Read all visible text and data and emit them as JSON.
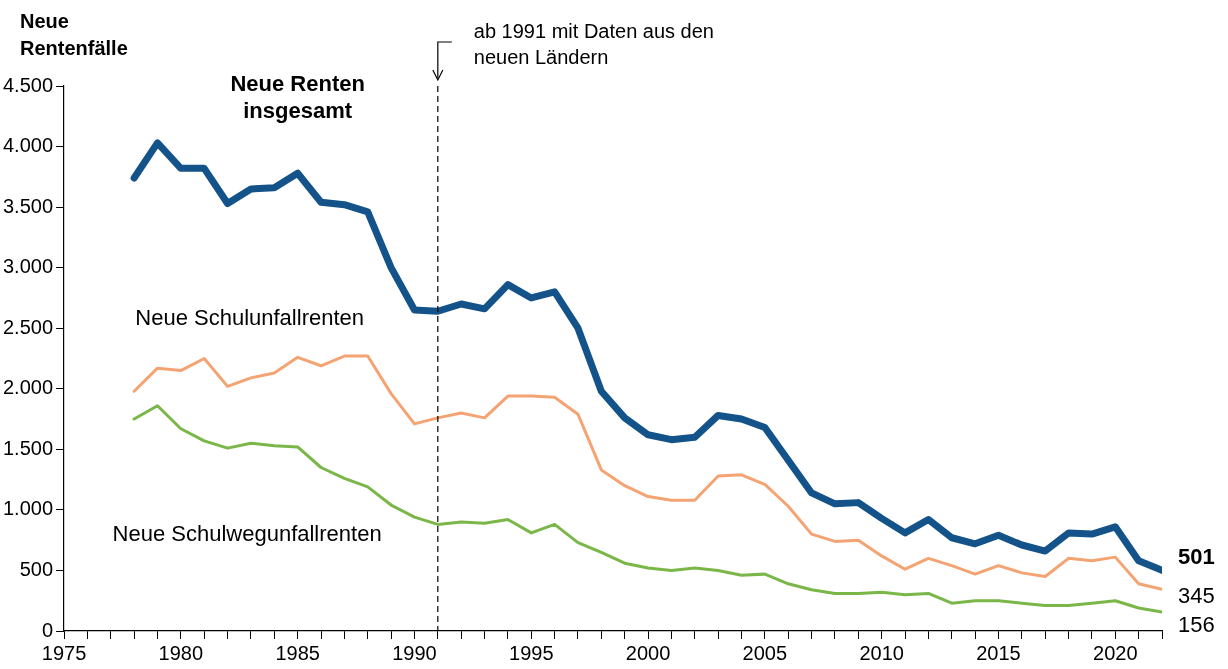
{
  "chart_data": {
    "type": "line",
    "ylabel": "Neue Rentenfälle",
    "x": [
      1978,
      1979,
      1980,
      1981,
      1982,
      1983,
      1984,
      1985,
      1986,
      1987,
      1988,
      1989,
      1990,
      1991,
      1992,
      1993,
      1994,
      1995,
      1996,
      1997,
      1998,
      1999,
      2000,
      2001,
      2002,
      2003,
      2004,
      2005,
      2006,
      2007,
      2008,
      2009,
      2010,
      2011,
      2012,
      2013,
      2014,
      2015,
      2016,
      2017,
      2018,
      2019,
      2020,
      2021,
      2022
    ],
    "series": [
      {
        "name": "Neue Renten insgesamt",
        "color": "#14538a",
        "values": [
          3740,
          4030,
          3820,
          3820,
          3530,
          3650,
          3660,
          3780,
          3540,
          3520,
          3460,
          3000,
          2650,
          2640,
          2700,
          2660,
          2860,
          2750,
          2800,
          2500,
          1980,
          1760,
          1620,
          1580,
          1600,
          1780,
          1750,
          1680,
          1410,
          1140,
          1050,
          1060,
          930,
          810,
          920,
          770,
          720,
          790,
          710,
          660,
          810,
          800,
          860,
          580,
          501
        ],
        "value_labels": [
          null,
          null,
          null,
          null,
          null,
          null,
          null,
          null,
          null,
          null,
          null,
          null,
          null,
          null,
          null,
          null,
          null,
          null,
          null,
          null,
          null,
          null,
          null,
          null,
          null,
          null,
          null,
          null,
          null,
          null,
          null,
          null,
          null,
          null,
          null,
          null,
          null,
          null,
          null,
          null,
          null,
          null,
          null,
          null,
          "501"
        ]
      },
      {
        "name": "Neue Schulunfallrenten",
        "color": "#f4a373",
        "values": [
          1980,
          2170,
          2150,
          2250,
          2020,
          2090,
          2130,
          2260,
          2190,
          2270,
          2270,
          1960,
          1710,
          1760,
          1800,
          1760,
          1940,
          1940,
          1930,
          1790,
          1330,
          1200,
          1110,
          1080,
          1080,
          1280,
          1290,
          1210,
          1030,
          800,
          740,
          750,
          620,
          510,
          600,
          540,
          470,
          540,
          480,
          450,
          600,
          580,
          610,
          390,
          345
        ],
        "value_labels": [
          null,
          null,
          null,
          null,
          null,
          null,
          null,
          null,
          null,
          null,
          null,
          null,
          null,
          null,
          null,
          null,
          null,
          null,
          null,
          null,
          null,
          null,
          null,
          null,
          null,
          null,
          null,
          null,
          null,
          null,
          null,
          null,
          null,
          null,
          null,
          null,
          null,
          null,
          null,
          null,
          null,
          null,
          null,
          null,
          "345"
        ]
      },
      {
        "name": "Neue Schulwegunfallrenten",
        "color": "#7ab648",
        "values": [
          1750,
          1860,
          1670,
          1570,
          1510,
          1550,
          1530,
          1520,
          1350,
          1260,
          1190,
          1040,
          940,
          880,
          900,
          890,
          920,
          810,
          880,
          730,
          650,
          560,
          520,
          500,
          520,
          500,
          460,
          470,
          390,
          340,
          310,
          310,
          320,
          300,
          310,
          230,
          250,
          250,
          230,
          210,
          210,
          230,
          250,
          190,
          156
        ],
        "value_labels": [
          null,
          null,
          null,
          null,
          null,
          null,
          null,
          null,
          null,
          null,
          null,
          null,
          null,
          null,
          null,
          null,
          null,
          null,
          null,
          null,
          null,
          null,
          null,
          null,
          null,
          null,
          null,
          null,
          null,
          null,
          null,
          null,
          null,
          null,
          null,
          null,
          null,
          null,
          null,
          null,
          null,
          null,
          null,
          null,
          "156"
        ]
      }
    ],
    "xlim": [
      1975,
      2022
    ],
    "xticks": [
      1975,
      {
        "value": 1976,
        "label": null
      },
      {
        "value": 1977,
        "label": null
      },
      {
        "value": 1978,
        "label": null
      },
      {
        "value": 1979,
        "label": null
      },
      1980,
      {
        "value": 1981,
        "label": null
      },
      {
        "value": 1982,
        "label": null
      },
      {
        "value": 1983,
        "label": null
      },
      {
        "value": 1984,
        "label": null
      },
      1985,
      {
        "value": 1986,
        "label": null
      },
      {
        "value": 1987,
        "label": null
      },
      {
        "value": 1988,
        "label": null
      },
      {
        "value": 1989,
        "label": null
      },
      1990,
      {
        "value": 1991,
        "label": null
      },
      {
        "value": 1992,
        "label": null
      },
      {
        "value": 1993,
        "label": null
      },
      {
        "value": 1994,
        "label": null
      },
      1995,
      {
        "value": 1996,
        "label": null
      },
      {
        "value": 1997,
        "label": null
      },
      {
        "value": 1998,
        "label": null
      },
      {
        "value": 1999,
        "label": null
      },
      2000,
      {
        "value": 2001,
        "label": null
      },
      {
        "value": 2002,
        "label": null
      },
      {
        "value": 2003,
        "label": null
      },
      {
        "value": 2004,
        "label": null
      },
      2005,
      {
        "value": 2006,
        "label": null
      },
      {
        "value": 2007,
        "label": null
      },
      {
        "value": 2008,
        "label": null
      },
      {
        "value": 2009,
        "label": null
      },
      2010,
      {
        "value": 2011,
        "label": null
      },
      {
        "value": 2012,
        "label": null
      },
      {
        "value": 2013,
        "label": null
      },
      {
        "value": 2014,
        "label": null
      },
      2015,
      {
        "value": 2016,
        "label": null
      },
      {
        "value": 2017,
        "label": null
      },
      {
        "value": 2018,
        "label": null
      },
      {
        "value": 2019,
        "label": null
      },
      2020,
      {
        "value": 2021,
        "label": null
      },
      {
        "value": 2022,
        "label": null
      }
    ],
    "ylim": [
      0,
      4500
    ],
    "yticks": [
      0,
      500,
      {
        "value": 1000,
        "label": "1.000"
      },
      {
        "value": 1500,
        "label": "1.500"
      },
      {
        "value": 2000,
        "label": "2.000"
      },
      {
        "value": 2500,
        "label": "2.500"
      },
      {
        "value": 3000,
        "label": "3.000"
      },
      {
        "value": 3500,
        "label": "3.500"
      },
      {
        "value": 4000,
        "label": "4.000"
      },
      {
        "value": 4500,
        "label": "4.500"
      }
    ],
    "ref_lines": [
      {
        "axis": "x",
        "value": 1991,
        "label": "ab 1991 mit Daten aus den neuen Ländern",
        "color": "#000000",
        "line_style": "dashed"
      }
    ],
    "grid": false,
    "legend": false,
    "marker": "none",
    "line_style": "solid"
  }
}
